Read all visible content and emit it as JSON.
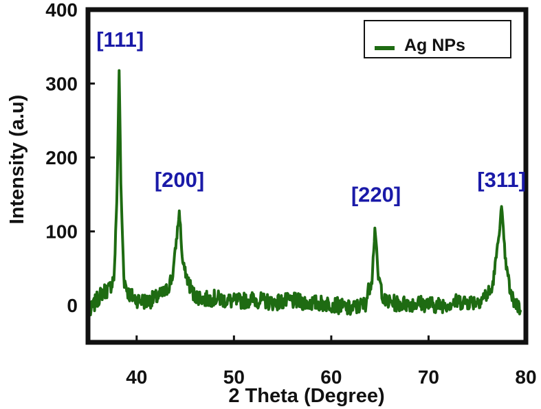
{
  "chart_data": {
    "type": "line",
    "xlabel": "2 Theta (Degree)",
    "ylabel": "Intensity (a.u)",
    "xlim": [
      35,
      80
    ],
    "ylim": [
      -50,
      400
    ],
    "xticks": [
      40,
      50,
      60,
      70,
      80
    ],
    "yticks": [
      0,
      100,
      200,
      300,
      400
    ],
    "xtick_labels": [
      "40",
      "50",
      "60",
      "70",
      "80"
    ],
    "ytick_labels": [
      "0",
      "100",
      "200",
      "300",
      "400"
    ],
    "grid": false,
    "legend_position": "top-right",
    "colors": {
      "series": "#1e6b12",
      "annotation": "#1a1aa8",
      "axes": "#111111"
    },
    "series": [
      {
        "name": "Ag NPs",
        "x": [
          35.2,
          35.8,
          36.5,
          37.2,
          37.7,
          38.0,
          38.2,
          38.4,
          38.7,
          39.2,
          40,
          41,
          42,
          43,
          43.7,
          44.1,
          44.4,
          44.7,
          45.1,
          45.8,
          47,
          48,
          50,
          52,
          54,
          56,
          58,
          60,
          62,
          63.5,
          64.2,
          64.5,
          64.8,
          65.5,
          67,
          69,
          71,
          73,
          75,
          76.5,
          77.1,
          77.5,
          77.9,
          78.5,
          79.5
        ],
        "y": [
          -10,
          5,
          18,
          22,
          40,
          160,
          320,
          150,
          35,
          15,
          8,
          5,
          10,
          18,
          40,
          90,
          128,
          60,
          40,
          15,
          8,
          10,
          5,
          8,
          4,
          6,
          3,
          2,
          -5,
          2,
          40,
          108,
          40,
          5,
          2,
          3,
          0,
          5,
          5,
          20,
          80,
          132,
          60,
          10,
          -5
        ]
      }
    ],
    "annotations": [
      {
        "text": "[111]",
        "x": 38.3,
        "y": 350
      },
      {
        "text": "[200]",
        "x": 44.4,
        "y": 160
      },
      {
        "text": "[220]",
        "x": 64.6,
        "y": 140
      },
      {
        "text": "[311]",
        "x": 77.5,
        "y": 160
      }
    ]
  }
}
